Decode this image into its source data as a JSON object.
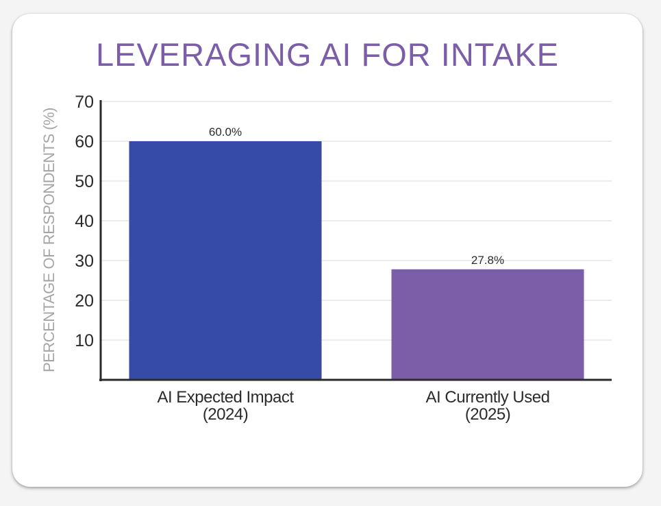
{
  "chart_data": {
    "type": "bar",
    "title": "LEVERAGING AI FOR INTAKE",
    "ylabel": "PERCENTAGE OF RESPONDENTS (%)",
    "xlabel": "",
    "categories": [
      [
        "AI Expected Impact",
        "(2024)"
      ],
      [
        "AI Currently Used",
        "(2025)"
      ]
    ],
    "values": [
      60.0,
      27.8
    ],
    "data_labels": [
      "60.0%",
      "27.8%"
    ],
    "bar_colors": [
      "#364ba5",
      "#7b5ea7"
    ],
    "ylim": [
      0,
      70
    ],
    "yticks": [
      10,
      20,
      30,
      40,
      50,
      60,
      70
    ],
    "grid": true,
    "legend": "none"
  },
  "colors": {
    "title": "#7b5ea7",
    "axis": "#2b2b2b",
    "grid": "#ececec",
    "ylabel": "#a5a5a5"
  }
}
